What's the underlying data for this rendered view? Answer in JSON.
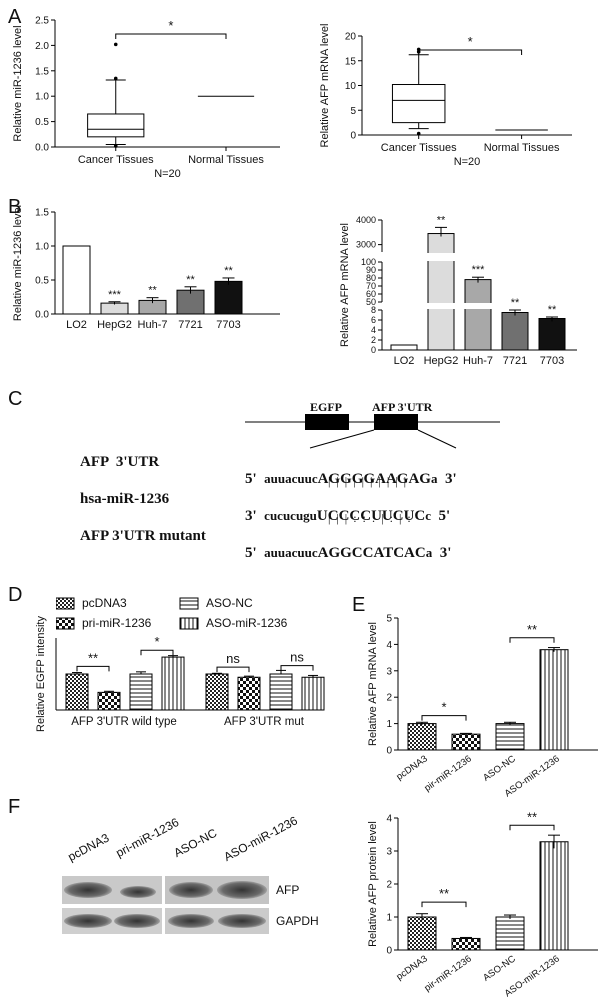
{
  "panels": {
    "A": "A",
    "B": "B",
    "C": "C",
    "D": "D",
    "E": "E",
    "F": "F"
  },
  "chart_data": [
    {
      "id": "A-left",
      "type": "box",
      "ylabel": "Relative miR-1236 level",
      "xlabel": "N=20",
      "categories": [
        "Cancer Tissues",
        "Normal Tissues"
      ],
      "ylim": [
        0,
        2.5
      ],
      "yticks": [
        "0.0",
        "0.5",
        "1.0",
        "1.5",
        "2.0",
        "2.5"
      ],
      "boxes": [
        {
          "whisker_low": 0.05,
          "q1": 0.2,
          "median": 0.35,
          "q3": 0.65,
          "whisker_high": 1.32,
          "outliers": [
            2.02,
            1.35,
            0.02
          ]
        },
        {
          "line": 1.0
        }
      ],
      "significance": "*"
    },
    {
      "id": "A-right",
      "type": "box",
      "ylabel": "Relative AFP mRNA level",
      "xlabel": "N=20",
      "categories": [
        "Cancer Tissues",
        "Normal Tissues"
      ],
      "ylim": [
        0,
        20
      ],
      "yticks": [
        "0",
        "5",
        "10",
        "15",
        "20"
      ],
      "boxes": [
        {
          "whisker_low": 1.3,
          "q1": 2.5,
          "median": 7.0,
          "q3": 10.2,
          "whisker_high": 16.2,
          "outliers": [
            17.3,
            16.8,
            0.3
          ]
        },
        {
          "line": 1.0
        }
      ],
      "significance": "*"
    },
    {
      "id": "B-left",
      "type": "bar",
      "ylabel": "Relative miR-1236 level",
      "categories": [
        "LO2",
        "HepG2",
        "Huh-7",
        "7721",
        "7703"
      ],
      "values": [
        1.0,
        0.16,
        0.2,
        0.35,
        0.48
      ],
      "errors": [
        0,
        0.02,
        0.04,
        0.05,
        0.05
      ],
      "significance": [
        "",
        "***",
        "**",
        "**",
        "**"
      ],
      "colors": [
        "#ffffff",
        "#dcdcdc",
        "#a8a8a8",
        "#707070",
        "#111111"
      ],
      "ylim": [
        0,
        1.5
      ],
      "yticks": [
        "0.0",
        "0.5",
        "1.0",
        "1.5"
      ]
    },
    {
      "id": "B-right",
      "type": "bar",
      "ylabel": "Relative AFP mRNA level",
      "categories": [
        "LO2",
        "HepG2",
        "Huh-7",
        "7721",
        "7703"
      ],
      "values": [
        1.0,
        3450,
        78,
        7.5,
        6.3
      ],
      "errors": [
        0,
        250,
        3,
        0.5,
        0.3
      ],
      "significance": [
        "",
        "**",
        "***",
        "**",
        "**"
      ],
      "colors": [
        "#ffffff",
        "#dcdcdc",
        "#a8a8a8",
        "#707070",
        "#111111"
      ],
      "axis_breaks": true,
      "yticks_top": [
        "3000",
        "4000"
      ],
      "yticks_mid": [
        "50",
        "60",
        "70",
        "80",
        "90",
        "100"
      ],
      "yticks_low": [
        "0",
        "2",
        "4",
        "6",
        "8"
      ]
    },
    {
      "id": "D",
      "type": "bar",
      "ylabel": "Relative EGFP intensity",
      "groups": [
        "AFP 3'UTR wild type",
        "AFP 3'UTR mut"
      ],
      "series": [
        {
          "name": "pcDNA3",
          "values": [
            1.0,
            1.0
          ],
          "errors": [
            0.04,
            0.02
          ]
        },
        {
          "name": "pri-miR-1236",
          "values": [
            0.49,
            0.91
          ],
          "errors": [
            0.03,
            0.03
          ]
        },
        {
          "name": "ASO-NC",
          "values": [
            1.0,
            1.0
          ],
          "errors": [
            0.06,
            0.1
          ]
        },
        {
          "name": "ASO-miR-1236",
          "values": [
            1.47,
            0.91
          ],
          "errors": [
            0.04,
            0.05
          ]
        }
      ],
      "significance": [
        "**",
        "*",
        "ns",
        "ns"
      ],
      "ylim": [
        0,
        2.0
      ]
    },
    {
      "id": "E",
      "type": "bar",
      "ylabel": "Relative AFP mRNA level",
      "categories": [
        "pcDNA3",
        "pir-miR-1236",
        "ASO-NC",
        "ASO-miR-1236"
      ],
      "values": [
        1.0,
        0.6,
        1.0,
        3.8
      ],
      "errors": [
        0.05,
        0.03,
        0.05,
        0.08
      ],
      "significance": [
        "*",
        "**"
      ],
      "ylim": [
        0,
        5
      ],
      "yticks": [
        "0",
        "1",
        "2",
        "3",
        "4",
        "5"
      ]
    },
    {
      "id": "F-right",
      "type": "bar",
      "ylabel": "Relative AFP protein level",
      "categories": [
        "pcDNA3",
        "pir-miR-1236",
        "ASO-NC",
        "ASO-miR-1236"
      ],
      "values": [
        1.0,
        0.35,
        1.0,
        3.28
      ],
      "errors": [
        0.1,
        0.03,
        0.06,
        0.2
      ],
      "significance": [
        "**",
        "**"
      ],
      "ylim": [
        0,
        4
      ],
      "yticks": [
        "0",
        "1",
        "2",
        "3",
        "4"
      ]
    }
  ],
  "construct": {
    "egfp": "EGFP",
    "utr": "AFP 3'UTR",
    "rows": [
      {
        "label": "AFP  3'UTR",
        "p5": "5'",
        "lower": "auuacuuc",
        "upper": "AGGGGAAGAG",
        "tail": "a",
        "p3": "3'"
      },
      {
        "label": "hsa-miR-1236",
        "p5": "3'",
        "lower": "cucucugu",
        "upper": "UCCCCUUCUC",
        "tail": "c",
        "p3": "5'"
      },
      {
        "label": "AFP 3'UTR mutant",
        "p5": "5'",
        "lower": "auuacuuc",
        "upper": "AGGCCATCAC",
        "tail": "a",
        "p3": "3'"
      }
    ],
    "pairing1": "|  |  |  |  |  |  |  |  |  |",
    "pairing2": "|  |  |  :  :  :  |  :  |  :"
  },
  "legend_D": {
    "a": "pcDNA3",
    "b": "pri-miR-1236",
    "c": "ASO-NC",
    "d": "ASO-miR-1236"
  },
  "blot": {
    "lanes": [
      "pcDNA3",
      "pri-miR-1236",
      "ASO-NC",
      "ASO-miR-1236"
    ],
    "bands": [
      "AFP",
      "GAPDH"
    ]
  }
}
